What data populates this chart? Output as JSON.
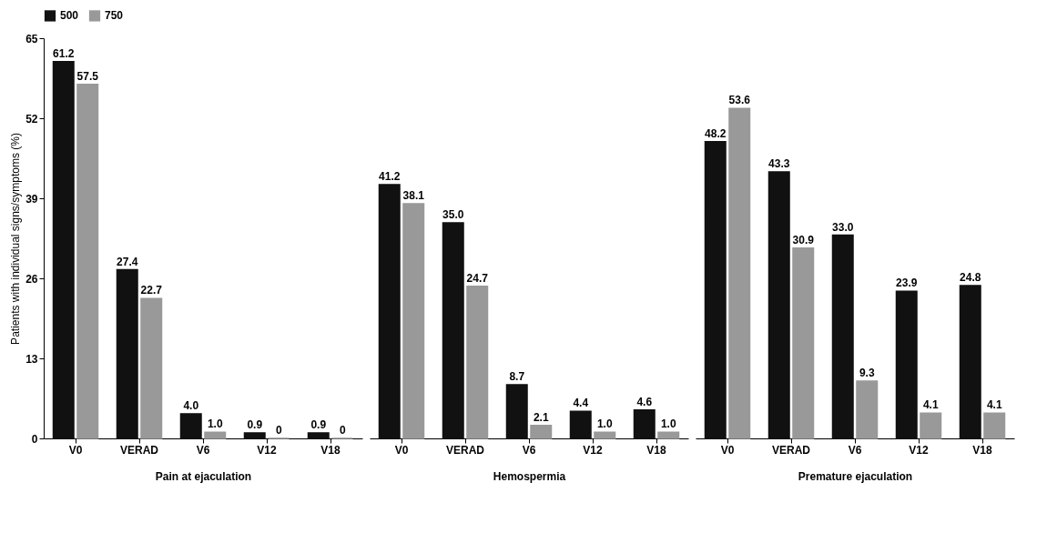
{
  "chart_data": [
    {
      "type": "bar",
      "xlabel": "Pain at ejaculation",
      "ylabel": "Patients with individual signs/symptoms (%)",
      "categories": [
        "V0",
        "VERAD",
        "V6",
        "V12",
        "V18"
      ],
      "ylim": [
        0,
        65
      ],
      "yticks": [
        0,
        13,
        26,
        39,
        52,
        65
      ],
      "legend": "top",
      "series": [
        {
          "name": "500",
          "color": "#111111",
          "values": [
            61.2,
            27.4,
            4.0,
            0.9,
            0.9
          ],
          "value_labels": [
            "61.2",
            "27.4",
            "4.0",
            "0.9",
            "0.9"
          ]
        },
        {
          "name": "750",
          "color": "#999999",
          "values": [
            57.5,
            22.7,
            1.0,
            0,
            0
          ],
          "value_labels": [
            "57.5",
            "22.7",
            "1.0",
            "0",
            "0"
          ]
        }
      ]
    },
    {
      "type": "bar",
      "xlabel": "Hemospermia",
      "categories": [
        "V0",
        "VERAD",
        "V6",
        "V12",
        "V18"
      ],
      "ylim": [
        0,
        65
      ],
      "tick_labels": "x",
      "series": [
        {
          "color": "#111111",
          "values": [
            41.2,
            35.0,
            8.7,
            4.4,
            4.6
          ],
          "value_labels": [
            "41.2",
            "35.0",
            "8.7",
            "4.4",
            "4.6"
          ]
        },
        {
          "color": "#999999",
          "values": [
            38.1,
            24.7,
            2.1,
            1.0,
            1.0
          ],
          "value_labels": [
            "38.1",
            "24.7",
            "2.1",
            "1.0",
            "1.0"
          ]
        }
      ]
    },
    {
      "type": "bar",
      "xlabel": "Premature ejaculation",
      "categories": [
        "V0",
        "VERAD",
        "V6",
        "V12",
        "V18"
      ],
      "ylim": [
        0,
        65
      ],
      "tick_labels": "x",
      "series": [
        {
          "color": "#111111",
          "values": [
            48.2,
            43.3,
            33.0,
            23.9,
            24.8
          ],
          "value_labels": [
            "48.2",
            "43.3",
            "33.0",
            "23.9",
            "24.8"
          ]
        },
        {
          "color": "#999999",
          "values": [
            53.6,
            30.9,
            9.3,
            4.1,
            4.1
          ],
          "value_labels": [
            "53.6",
            "30.9",
            "9.3",
            "4.1",
            "4.1"
          ]
        }
      ]
    }
  ]
}
